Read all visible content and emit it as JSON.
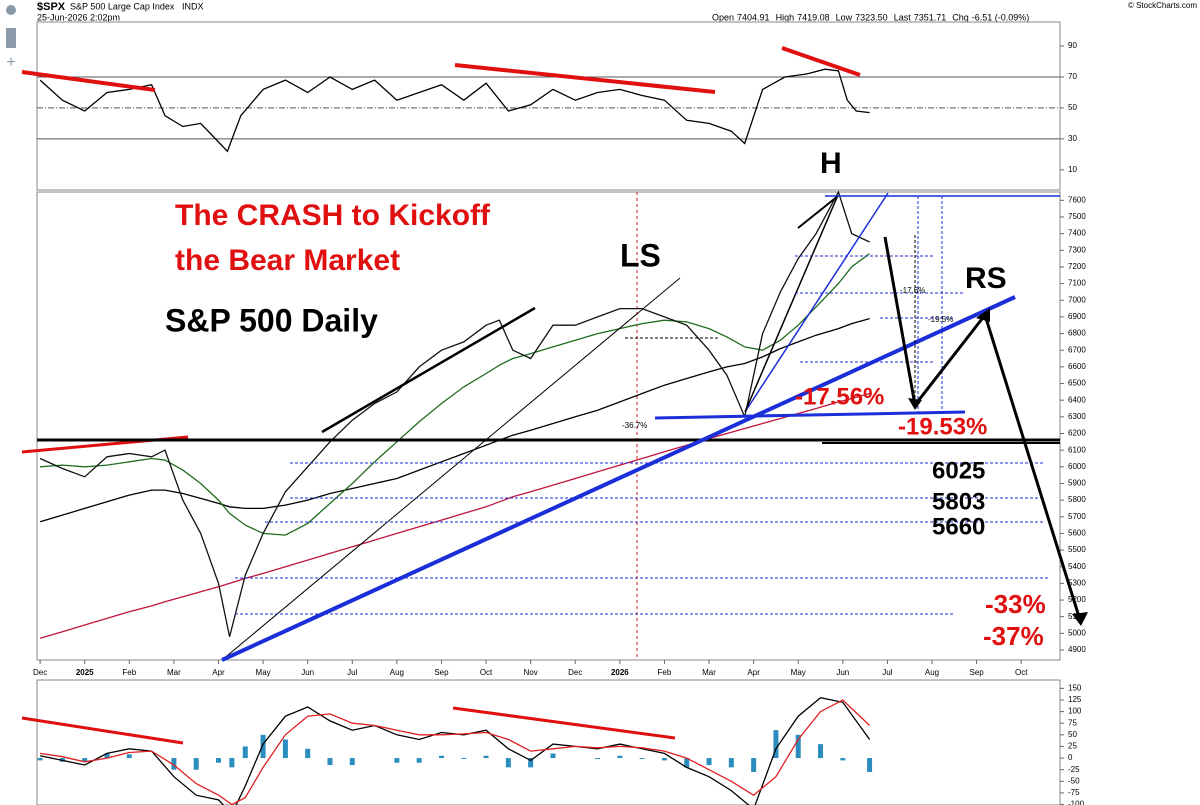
{
  "header": {
    "symbol": "$SPX",
    "name": "S&P 500 Large Cap Index",
    "exchange": "INDX",
    "datetime": "25-Jun-2026 2:02pm",
    "quote": [
      {
        "label": "Open",
        "value": "7404.91"
      },
      {
        "label": "High",
        "value": "7419.08"
      },
      {
        "label": "Low",
        "value": "7323.50"
      },
      {
        "label": "Last",
        "value": "7351.71"
      },
      {
        "label": "Chg",
        "value": "-6.51 (-0.09%)"
      }
    ],
    "credit": "© StockCharts.com"
  },
  "chart_data": [
    {
      "type": "line",
      "xlim": [
        -0.07,
        22.87
      ],
      "ylim": [
        -3,
        105.5
      ],
      "yticks": [
        10,
        30,
        50,
        70,
        90
      ],
      "levels": [
        70,
        50,
        30
      ],
      "x": [
        0,
        0.5,
        1,
        1.5,
        2,
        2.5,
        2.8,
        3.2,
        3.6,
        4.0,
        4.2,
        4.5,
        5,
        5.5,
        6,
        6.5,
        7,
        7.5,
        8,
        8.5,
        9,
        9.5,
        10,
        10.5,
        11,
        11.5,
        12,
        12.5,
        13,
        13.5,
        14,
        14.5,
        15,
        15.5,
        15.8,
        16.2,
        16.7,
        17.2,
        17.6,
        17.9,
        18.1,
        18.3,
        18.6
      ],
      "series": [
        {
          "color": "#000000",
          "values": [
            68,
            55,
            48,
            60,
            62,
            65,
            45,
            38,
            40,
            28,
            22,
            45,
            62,
            68,
            60,
            70,
            62,
            68,
            55,
            60,
            65,
            55,
            66,
            48,
            52,
            62,
            55,
            60,
            62,
            58,
            55,
            42,
            40,
            35,
            27,
            62,
            70,
            72,
            75,
            74,
            55,
            48,
            47
          ]
        }
      ]
    },
    {
      "type": "line",
      "xlim": [
        -0.07,
        22.87
      ],
      "ylim": [
        4840,
        7650
      ],
      "yticks": [
        4900,
        5000,
        5100,
        5200,
        5300,
        5400,
        5500,
        5600,
        5700,
        5800,
        5900,
        6000,
        6100,
        6200,
        6300,
        6400,
        6500,
        6600,
        6700,
        6800,
        6900,
        7000,
        7100,
        7200,
        7300,
        7400,
        7500,
        7600
      ],
      "xticks": [
        {
          "value": 0,
          "label": "Dec"
        },
        {
          "value": 1,
          "label": "2025"
        },
        {
          "value": 2,
          "label": "Feb"
        },
        {
          "value": 3,
          "label": "Mar"
        },
        {
          "value": 4,
          "label": "Apr"
        },
        {
          "value": 5,
          "label": "May"
        },
        {
          "value": 6,
          "label": "Jun"
        },
        {
          "value": 7,
          "label": "Jul"
        },
        {
          "value": 8,
          "label": "Aug"
        },
        {
          "value": 9,
          "label": "Sep"
        },
        {
          "value": 10,
          "label": "Oct"
        },
        {
          "value": 11,
          "label": "Nov"
        },
        {
          "value": 12,
          "label": "Dec"
        },
        {
          "value": 13,
          "label": "2026"
        },
        {
          "value": 14,
          "label": "Feb"
        },
        {
          "value": 15,
          "label": "Mar"
        },
        {
          "value": 16,
          "label": "Apr"
        },
        {
          "value": 17,
          "label": "May"
        },
        {
          "value": 18,
          "label": "Jun"
        },
        {
          "value": 19,
          "label": "Jul"
        },
        {
          "value": 20,
          "label": "Aug"
        },
        {
          "value": 21,
          "label": "Sep"
        },
        {
          "value": 22,
          "label": "Oct"
        }
      ],
      "x": [
        0,
        0.5,
        1,
        1.5,
        2,
        2.5,
        2.8,
        3.2,
        3.6,
        4.0,
        4.25,
        4.6,
        5,
        5.5,
        6,
        6.5,
        7,
        7.5,
        8,
        8.5,
        9,
        9.5,
        10,
        10.3,
        10.6,
        11,
        11.5,
        12,
        12.5,
        13,
        13.5,
        14,
        14.5,
        15,
        15.4,
        15.8,
        16.2,
        16.6,
        17,
        17.4,
        17.9,
        18.2,
        18.6
      ],
      "series": [
        {
          "color": "#c0143c",
          "values": [
            4970,
            5010,
            5050,
            5090,
            5130,
            5165,
            5190,
            5220,
            5250,
            5280,
            5300,
            5330,
            5360,
            5400,
            5440,
            5480,
            5520,
            5560,
            5600,
            5640,
            5680,
            5720,
            5760,
            5790,
            5820,
            5850,
            5890,
            5930,
            5970,
            6010,
            6050,
            6090,
            6130,
            6170,
            6200,
            6230,
            6260,
            6290,
            6320,
            6350,
            6390,
            6410,
            6440
          ]
        },
        {
          "color": "#000000",
          "values": [
            5670,
            5710,
            5750,
            5790,
            5830,
            5860,
            5860,
            5840,
            5810,
            5780,
            5760,
            5750,
            5750,
            5770,
            5800,
            5840,
            5870,
            5900,
            5930,
            5980,
            6030,
            6080,
            6130,
            6160,
            6190,
            6220,
            6260,
            6300,
            6340,
            6390,
            6440,
            6490,
            6530,
            6570,
            6600,
            6620,
            6660,
            6710,
            6750,
            6790,
            6830,
            6860,
            6890
          ]
        },
        {
          "color": "#1f6b1f",
          "values": [
            6000,
            6010,
            6000,
            6010,
            6030,
            6050,
            6040,
            5980,
            5900,
            5800,
            5720,
            5650,
            5600,
            5590,
            5660,
            5780,
            5900,
            6030,
            6150,
            6270,
            6380,
            6480,
            6560,
            6610,
            6650,
            6680,
            6720,
            6760,
            6800,
            6830,
            6860,
            6880,
            6870,
            6830,
            6780,
            6720,
            6700,
            6760,
            6850,
            6960,
            7100,
            7200,
            7280
          ]
        },
        {
          "color": "#111111",
          "values": [
            6050,
            5990,
            5940,
            6060,
            6080,
            6060,
            6100,
            5800,
            5600,
            5300,
            4980,
            5350,
            5600,
            5850,
            6000,
            6150,
            6280,
            6380,
            6450,
            6600,
            6700,
            6750,
            6850,
            6880,
            6700,
            6650,
            6850,
            6850,
            6900,
            6950,
            6950,
            6900,
            6850,
            6700,
            6550,
            6300,
            6800,
            7050,
            7250,
            7400,
            7650,
            7400,
            7350
          ]
        }
      ],
      "annotations": [
        "The CRASH to Kickoff",
        "the Bear Market",
        "S&P 500 Daily",
        "LS",
        "H",
        "RS",
        "-17.56%",
        "-19.53%",
        "6025",
        "5803",
        "5660",
        "-33%",
        "-37%",
        "-17.6%",
        "-19.5%",
        "-36.7%"
      ]
    },
    {
      "type": "line",
      "xlim": [
        -0.07,
        22.87
      ],
      "ylim": [
        -101,
        168
      ],
      "yticks": [
        150,
        125,
        100,
        75,
        50,
        25,
        0,
        -25,
        -50,
        -75,
        -100
      ],
      "x": [
        0,
        0.5,
        1,
        1.5,
        2,
        2.5,
        3,
        3.5,
        4,
        4.3,
        4.6,
        5,
        5.5,
        6,
        6.5,
        7,
        7.5,
        8,
        8.5,
        9,
        9.5,
        10,
        10.5,
        11,
        11.5,
        12,
        12.5,
        13,
        13.5,
        14,
        14.5,
        15,
        15.5,
        16,
        16.5,
        17,
        17.5,
        18,
        18.6
      ],
      "series": [
        {
          "color": "#000000",
          "values": [
            5,
            -5,
            -15,
            10,
            20,
            15,
            -40,
            -80,
            -90,
            -120,
            -60,
            30,
            90,
            110,
            80,
            60,
            70,
            50,
            40,
            55,
            50,
            60,
            20,
            -5,
            30,
            25,
            20,
            30,
            20,
            10,
            -20,
            -40,
            -70,
            -110,
            20,
            90,
            130,
            120,
            40
          ]
        },
        {
          "color": "#e02020",
          "values": [
            10,
            3,
            -8,
            0,
            12,
            15,
            -15,
            -55,
            -80,
            -100,
            -85,
            -20,
            50,
            90,
            95,
            75,
            70,
            60,
            50,
            50,
            52,
            55,
            40,
            15,
            20,
            25,
            22,
            25,
            22,
            15,
            0,
            -25,
            -50,
            -80,
            -40,
            40,
            100,
            125,
            70
          ]
        }
      ],
      "histogram": {
        "color": "#2b8cbe",
        "values": [
          -5,
          -8,
          -7,
          10,
          8,
          0,
          -25,
          -25,
          -10,
          -20,
          25,
          50,
          40,
          20,
          -15,
          -15,
          0,
          -10,
          -10,
          5,
          -2,
          5,
          -20,
          -20,
          10,
          0,
          -2,
          5,
          -2,
          -5,
          -20,
          -15,
          -20,
          -30,
          60,
          50,
          30,
          -5,
          -30
        ]
      }
    }
  ]
}
